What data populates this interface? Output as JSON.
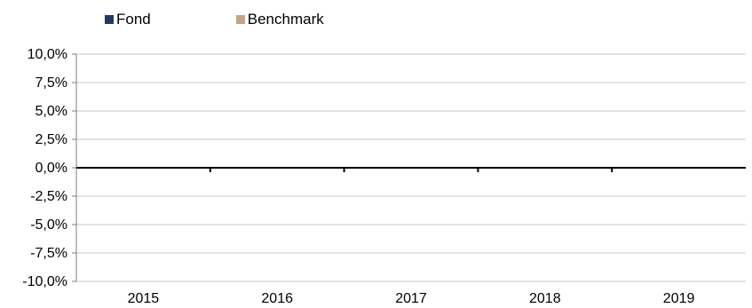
{
  "chart_data": {
    "type": "bar",
    "title": "",
    "xlabel": "",
    "ylabel": "",
    "categories": [
      "2015",
      "2016",
      "2017",
      "2018",
      "2019"
    ],
    "series": [
      {
        "name": "Fond",
        "color": "#1f3864",
        "values": [
          0,
          0,
          0,
          0,
          0
        ]
      },
      {
        "name": "Benchmark",
        "color": "#c4a484",
        "values": [
          0,
          0,
          0,
          0,
          0
        ]
      }
    ],
    "ylim": [
      -0.1,
      0.1
    ],
    "yticks": [
      0.1,
      0.075,
      0.05,
      0.025,
      0.0,
      -0.025,
      -0.05,
      -0.075,
      -0.1
    ],
    "ytick_labels": [
      "10,0%",
      "7,5%",
      "5,0%",
      "2,5%",
      "0,0%",
      "-2,5%",
      "-5,0%",
      "-7,5%",
      "-10,0%"
    ],
    "grid": true,
    "legend_position": "top-left"
  }
}
